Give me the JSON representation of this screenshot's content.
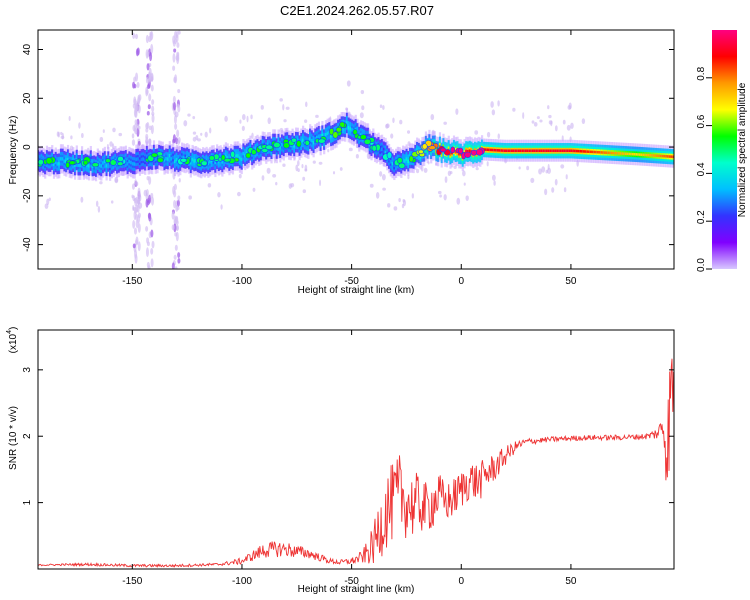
{
  "figure": {
    "title": "C2E1.2024.262.05.57.R07"
  },
  "chart_data": [
    {
      "type": "heatmap",
      "title": "C2E1.2024.262.05.57.R07",
      "xlabel": "Height of straight line (km)",
      "ylabel": "Frequency (Hz)",
      "xlim": [
        -193,
        97
      ],
      "ylim": [
        -50,
        48
      ],
      "xticks": [
        -150,
        -100,
        -50,
        0,
        50
      ],
      "yticks": [
        -40,
        -20,
        0,
        20,
        40
      ],
      "colorbar": {
        "label": "Normalized spectral amplitude",
        "range": [
          0.0,
          1.0
        ],
        "ticks": [
          0.0,
          0.2,
          0.4,
          0.6,
          0.8
        ],
        "colormap": [
          "#d8c8ff",
          "#8000ff",
          "#3333ff",
          "#00bfff",
          "#00ffcc",
          "#00ff00",
          "#ffff00",
          "#ff9900",
          "#ff0000",
          "#ff0080"
        ]
      },
      "ridge": {
        "x": [
          -193,
          -180,
          -165,
          -150,
          -140,
          -130,
          -120,
          -110,
          -100,
          -90,
          -80,
          -70,
          -60,
          -52,
          -45,
          -40,
          -35,
          -30,
          -25,
          -20,
          -15,
          -10,
          -5,
          0,
          5,
          10,
          20,
          50,
          80,
          97
        ],
        "y": [
          -6,
          -6,
          -7,
          -6,
          -4,
          -5,
          -6,
          -5,
          -4,
          0,
          1,
          2,
          5,
          9,
          4,
          1,
          -3,
          -7,
          -6,
          -3,
          0,
          -1,
          -2,
          -3,
          -2,
          -1,
          -1.5,
          -1.5,
          -3,
          -4
        ],
        "amplitude": [
          0.35,
          0.38,
          0.35,
          0.3,
          0.35,
          0.34,
          0.36,
          0.36,
          0.38,
          0.36,
          0.37,
          0.35,
          0.38,
          0.42,
          0.36,
          0.32,
          0.3,
          0.33,
          0.38,
          0.45,
          0.6,
          0.75,
          0.85,
          0.9,
          0.9,
          0.9,
          0.92,
          0.92,
          0.7,
          0.85
        ]
      },
      "vertical_streaks_x": [
        -148,
        -142,
        -130
      ]
    },
    {
      "type": "line",
      "xlabel": "Height of straight line (km)",
      "ylabel": "SNR (10 * v/v)",
      "multiplier": "(x10",
      "multiplier_exp": "4",
      "multiplier_close": ")",
      "xlim": [
        -193,
        97
      ],
      "ylim": [
        0,
        3.6
      ],
      "xticks": [
        -150,
        -100,
        -50,
        0,
        50
      ],
      "yticks": [
        1,
        2,
        3
      ],
      "color": "#ee3333",
      "series": [
        {
          "x": [
            -193,
            -170,
            -150,
            -130,
            -110,
            -100,
            -95,
            -90,
            -85,
            -80,
            -75,
            -70,
            -65,
            -60,
            -55,
            -50,
            -45,
            -40,
            -37,
            -34,
            -31,
            -28,
            -25,
            -22,
            -19,
            -16,
            -13,
            -10,
            -7,
            -4,
            0,
            4,
            8,
            12,
            16,
            20,
            25,
            30,
            40,
            50,
            60,
            70,
            80,
            85,
            90,
            92,
            94,
            96,
            97
          ],
          "y": [
            0.06,
            0.07,
            0.05,
            0.05,
            0.07,
            0.12,
            0.2,
            0.28,
            0.3,
            0.3,
            0.26,
            0.24,
            0.18,
            0.12,
            0.1,
            0.12,
            0.18,
            0.35,
            0.65,
            0.9,
            1.0,
            1.15,
            1.0,
            0.95,
            1.0,
            0.9,
            1.0,
            1.1,
            1.0,
            1.05,
            1.2,
            1.35,
            1.3,
            1.45,
            1.55,
            1.7,
            1.85,
            1.92,
            1.95,
            1.97,
            1.98,
            1.98,
            1.99,
            2.0,
            2.05,
            2.2,
            1.8,
            2.9,
            2.6
          ],
          "noise": [
            0.01,
            0.02,
            0.02,
            0.02,
            0.02,
            0.05,
            0.08,
            0.12,
            0.12,
            0.12,
            0.1,
            0.08,
            0.06,
            0.04,
            0.04,
            0.05,
            0.1,
            0.3,
            0.5,
            0.6,
            0.6,
            0.6,
            0.55,
            0.5,
            0.45,
            0.4,
            0.4,
            0.35,
            0.3,
            0.3,
            0.3,
            0.3,
            0.3,
            0.25,
            0.2,
            0.15,
            0.08,
            0.05,
            0.04,
            0.04,
            0.04,
            0.04,
            0.04,
            0.05,
            0.1,
            0.3,
            0.8,
            0.8,
            0.6
          ]
        }
      ]
    }
  ]
}
